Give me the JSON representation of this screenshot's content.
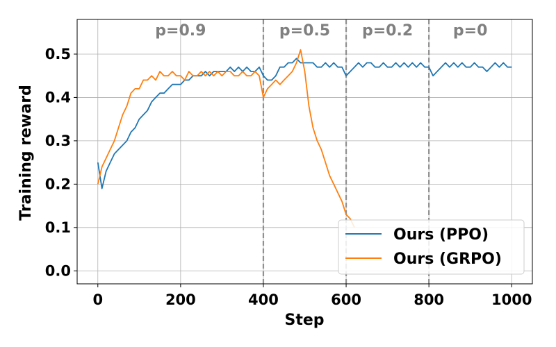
{
  "chart_data": {
    "type": "line",
    "title": "",
    "xlabel": "Step",
    "ylabel": "Training reward",
    "xlim": [
      -50,
      1050
    ],
    "ylim": [
      -0.03,
      0.58
    ],
    "xticks": [
      0,
      200,
      400,
      600,
      800,
      1000
    ],
    "yticks": [
      "0.0",
      "0.1",
      "0.2",
      "0.3",
      "0.4",
      "0.5"
    ],
    "grid": true,
    "legend_position": "lower-right",
    "phase_boundaries": [
      400,
      600,
      800
    ],
    "phases": [
      {
        "label": "p=0.9",
        "x_center": 200
      },
      {
        "label": "p=0.5",
        "x_center": 500
      },
      {
        "label": "p=0.2",
        "x_center": 700
      },
      {
        "label": "p=0",
        "x_center": 900
      }
    ],
    "series": [
      {
        "name": "Ours (PPO)",
        "color": "#1f77b4",
        "x": [
          0,
          10,
          20,
          30,
          40,
          50,
          60,
          70,
          80,
          90,
          100,
          110,
          120,
          130,
          140,
          150,
          160,
          170,
          180,
          190,
          200,
          210,
          220,
          230,
          240,
          250,
          260,
          270,
          280,
          290,
          300,
          310,
          320,
          330,
          340,
          350,
          360,
          370,
          380,
          390,
          400,
          410,
          420,
          430,
          440,
          450,
          460,
          470,
          480,
          490,
          500,
          510,
          520,
          530,
          540,
          550,
          560,
          570,
          580,
          590,
          600,
          610,
          620,
          630,
          640,
          650,
          660,
          670,
          680,
          690,
          700,
          710,
          720,
          730,
          740,
          750,
          760,
          770,
          780,
          790,
          800,
          810,
          820,
          830,
          840,
          850,
          860,
          870,
          880,
          890,
          900,
          910,
          920,
          930,
          940,
          950,
          960,
          970,
          980,
          990,
          1000
        ],
        "values": [
          0.25,
          0.19,
          0.23,
          0.25,
          0.27,
          0.28,
          0.29,
          0.3,
          0.32,
          0.33,
          0.35,
          0.36,
          0.37,
          0.39,
          0.4,
          0.41,
          0.41,
          0.42,
          0.43,
          0.43,
          0.43,
          0.44,
          0.44,
          0.45,
          0.45,
          0.45,
          0.46,
          0.45,
          0.46,
          0.46,
          0.46,
          0.46,
          0.47,
          0.46,
          0.47,
          0.46,
          0.47,
          0.46,
          0.46,
          0.47,
          0.45,
          0.44,
          0.44,
          0.45,
          0.47,
          0.47,
          0.48,
          0.48,
          0.49,
          0.48,
          0.48,
          0.48,
          0.48,
          0.47,
          0.47,
          0.48,
          0.47,
          0.48,
          0.47,
          0.47,
          0.45,
          0.46,
          0.47,
          0.48,
          0.47,
          0.48,
          0.48,
          0.47,
          0.47,
          0.48,
          0.47,
          0.47,
          0.48,
          0.47,
          0.48,
          0.47,
          0.48,
          0.47,
          0.48,
          0.47,
          0.47,
          0.45,
          0.46,
          0.47,
          0.48,
          0.47,
          0.48,
          0.47,
          0.48,
          0.47,
          0.47,
          0.48,
          0.47,
          0.47,
          0.46,
          0.47,
          0.48,
          0.47,
          0.48,
          0.47,
          0.47
        ]
      },
      {
        "name": "Ours (GRPO)",
        "color": "#ff7f0e",
        "x": [
          0,
          10,
          20,
          30,
          40,
          50,
          60,
          70,
          80,
          90,
          100,
          110,
          120,
          130,
          140,
          150,
          160,
          170,
          180,
          190,
          200,
          210,
          220,
          230,
          240,
          250,
          260,
          270,
          280,
          290,
          300,
          310,
          320,
          330,
          340,
          350,
          360,
          370,
          380,
          390,
          400,
          410,
          420,
          430,
          440,
          450,
          460,
          470,
          480,
          490,
          500,
          510,
          520,
          530,
          540,
          550,
          560,
          570,
          580,
          590,
          600,
          610,
          620
        ],
        "values": [
          0.2,
          0.24,
          0.26,
          0.28,
          0.3,
          0.33,
          0.36,
          0.38,
          0.41,
          0.42,
          0.42,
          0.44,
          0.44,
          0.45,
          0.44,
          0.46,
          0.45,
          0.45,
          0.46,
          0.45,
          0.45,
          0.44,
          0.46,
          0.45,
          0.45,
          0.46,
          0.45,
          0.46,
          0.45,
          0.46,
          0.45,
          0.46,
          0.46,
          0.45,
          0.45,
          0.46,
          0.45,
          0.45,
          0.46,
          0.45,
          0.4,
          0.42,
          0.43,
          0.44,
          0.43,
          0.44,
          0.45,
          0.46,
          0.48,
          0.51,
          0.46,
          0.38,
          0.33,
          0.3,
          0.28,
          0.25,
          0.22,
          0.2,
          0.18,
          0.16,
          0.13,
          0.12,
          0.1
        ]
      }
    ]
  }
}
